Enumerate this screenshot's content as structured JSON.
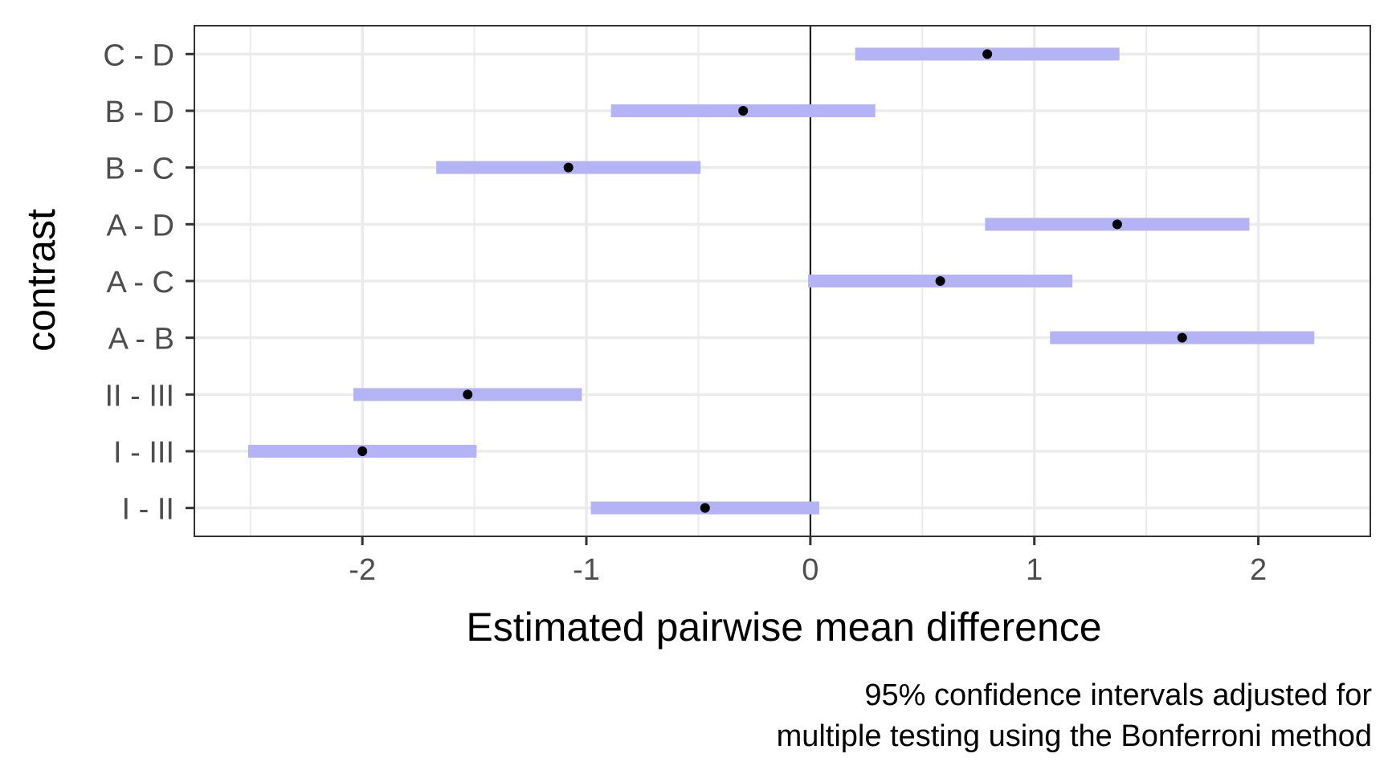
{
  "chart_data": {
    "type": "interval",
    "xlabel": "Estimated pairwise mean difference",
    "ylabel": "contrast",
    "caption": [
      "95% confidence intervals adjusted for",
      "multiple testing using the Bonferroni method"
    ],
    "xlim": [
      -2.75,
      2.5
    ],
    "xticks": [
      -2,
      -1,
      0,
      1,
      2
    ],
    "xtick_labels": [
      "-2",
      "-1",
      "0",
      "1",
      "2"
    ],
    "reference_line": 0,
    "grid": true,
    "categories": [
      "I - II",
      "I - III",
      "II - III",
      "A - B",
      "A - C",
      "A - D",
      "B - C",
      "B - D",
      "C - D"
    ],
    "estimates": [
      -0.47,
      -2.0,
      -1.53,
      1.66,
      0.58,
      1.37,
      -1.08,
      -0.3,
      0.79
    ],
    "lower": [
      -0.98,
      -2.51,
      -2.04,
      1.07,
      -0.01,
      0.78,
      -1.67,
      -0.89,
      0.2
    ],
    "upper": [
      0.04,
      -1.49,
      -1.02,
      2.25,
      1.17,
      1.96,
      -0.49,
      0.29,
      1.38
    ],
    "colors": {
      "interval": "#b3b3f5",
      "point": "#000000",
      "grid": "#ebebeb",
      "panel_border": "#333333",
      "tick_text": "#4d4d4d"
    }
  }
}
